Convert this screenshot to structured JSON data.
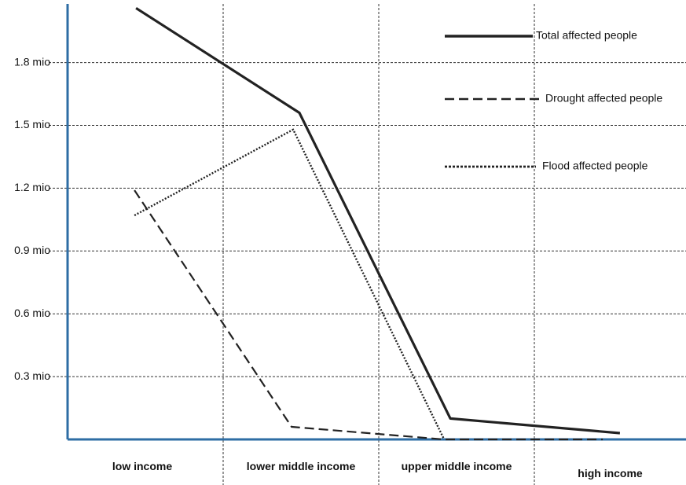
{
  "chart_data": {
    "type": "line",
    "categories": [
      "low income",
      "lower middle  income",
      "upper middle  income",
      "high income"
    ],
    "yticks": [
      {
        "value": 0.3,
        "label": "0.3 mio"
      },
      {
        "value": 0.6,
        "label": "0.6 mio"
      },
      {
        "value": 0.9,
        "label": "0.9 mio"
      },
      {
        "value": 1.2,
        "label": "1.2 mio"
      },
      {
        "value": 1.5,
        "label": "1.5 mio"
      },
      {
        "value": 1.8,
        "label": "1.8 mio"
      }
    ],
    "ylim": [
      0,
      2.08
    ],
    "grid": true,
    "legend_position": "top-right",
    "series": [
      {
        "name": "Total affected people",
        "style": "solid",
        "color": "#222222",
        "points": [
          {
            "x": 0.44,
            "y": 2.06
          },
          {
            "x": 1.49,
            "y": 1.56
          },
          {
            "x": 2.46,
            "y": 0.1
          },
          {
            "x": 3.55,
            "y": 0.03
          }
        ]
      },
      {
        "name": "Drought affected people",
        "style": "dashed",
        "color": "#222222",
        "points": [
          {
            "x": 0.43,
            "y": 1.19
          },
          {
            "x": 1.44,
            "y": 0.06
          },
          {
            "x": 2.42,
            "y": 0.0
          },
          {
            "x": 3.44,
            "y": 0.0
          }
        ]
      },
      {
        "name": "Flood affected people",
        "style": "dotted",
        "color": "#222222",
        "points": [
          {
            "x": 0.43,
            "y": 1.07
          },
          {
            "x": 1.45,
            "y": 1.48
          },
          {
            "x": 2.42,
            "y": 0.0
          }
        ]
      }
    ]
  },
  "colors": {
    "axis": "#2e6da4",
    "grid": "#333333",
    "line": "#222222"
  }
}
